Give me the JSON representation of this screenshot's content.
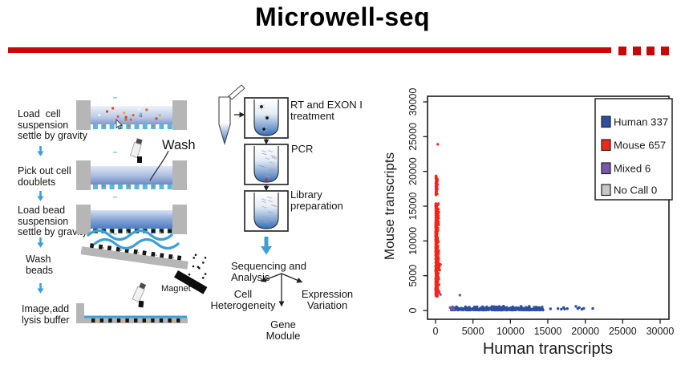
{
  "header": {
    "title": "Microwell-seq",
    "accent_color": "#c90707"
  },
  "workflow": {
    "steps": [
      {
        "label": "Load  cell\nsuspension\nsettle by gravity"
      },
      {
        "label": "Pick out cell\ndoublets"
      },
      {
        "label": "Load bead\nsuspension\nsettle by gravity"
      },
      {
        "label": "Wash\nbeads"
      },
      {
        "label": "Image,add\nlysis buffer"
      }
    ],
    "wash_label": "Wash",
    "magnet_label": "Magnet"
  },
  "protocol": {
    "rt_label": "RT and EXON I\ntreatment",
    "pcr_label": "PCR",
    "library_label": "Library\npreparation",
    "sequencing_label": "Sequencing and Analysis",
    "branch_left": "Cell\nHeterogeneity",
    "branch_right": "Expression\nVariation",
    "module_label": "Gene Module"
  },
  "chart_data": {
    "type": "scatter",
    "xlabel": "Human transcripts",
    "ylabel": "Mouse transcripts",
    "xlim": [
      0,
      31000
    ],
    "ylim": [
      0,
      31000
    ],
    "xticks": [
      0,
      5000,
      10000,
      15000,
      20000,
      25000,
      30000
    ],
    "yticks": [
      0,
      5000,
      10000,
      15000,
      20000,
      25000,
      30000
    ],
    "grid": false,
    "legend_position": "top-right",
    "series": [
      {
        "name": "Mouse",
        "legend_label": "Mouse 657",
        "count": 657,
        "color": "#f32419",
        "dot_radius": 1.6,
        "bands": [
          {
            "x": [
              20,
              500
            ],
            "y": [
              2000,
              15400
            ],
            "n": 560,
            "bias": "x"
          },
          {
            "x": [
              60,
              680
            ],
            "y": [
              5700,
              6700
            ],
            "n": 45,
            "bias": "x"
          },
          {
            "x": [
              40,
              380
            ],
            "y": [
              16600,
              17900
            ],
            "n": 28,
            "bias": "x"
          },
          {
            "x": [
              40,
              350
            ],
            "y": [
              18100,
              19400
            ],
            "n": 23,
            "bias": "x"
          }
        ],
        "points": [
          [
            300,
            23900
          ]
        ]
      },
      {
        "name": "Human",
        "legend_label": "Human 337",
        "count": 337,
        "color": "#2c4fa4",
        "dot_radius": 1.7,
        "bands": [
          {
            "x": [
              2100,
              14600
            ],
            "y": [
              60,
              650
            ],
            "n": 325,
            "bias": "y"
          }
        ],
        "points": [
          [
            15350,
            230
          ],
          [
            16350,
            270
          ],
          [
            16800,
            180
          ],
          [
            17100,
            420
          ],
          [
            17250,
            200
          ],
          [
            17600,
            260
          ],
          [
            18750,
            590
          ],
          [
            19000,
            260
          ],
          [
            19200,
            420
          ],
          [
            19550,
            170
          ],
          [
            19800,
            300
          ],
          [
            21000,
            280
          ]
        ]
      },
      {
        "name": "Mixed",
        "legend_label": "Mixed 6",
        "count": 6,
        "color": "#7a57a8",
        "dot_radius": 1.7,
        "bands": [],
        "points": [
          [
            650,
            2300
          ],
          [
            3250,
            2200
          ],
          [
            1950,
            420
          ],
          [
            2100,
            280
          ],
          [
            2250,
            520
          ],
          [
            2400,
            200
          ]
        ]
      },
      {
        "name": "No Call",
        "legend_label": "No Call 0",
        "count": 0,
        "color": "#c8c8c8",
        "dot_radius": 1.7,
        "bands": [],
        "points": []
      }
    ]
  }
}
